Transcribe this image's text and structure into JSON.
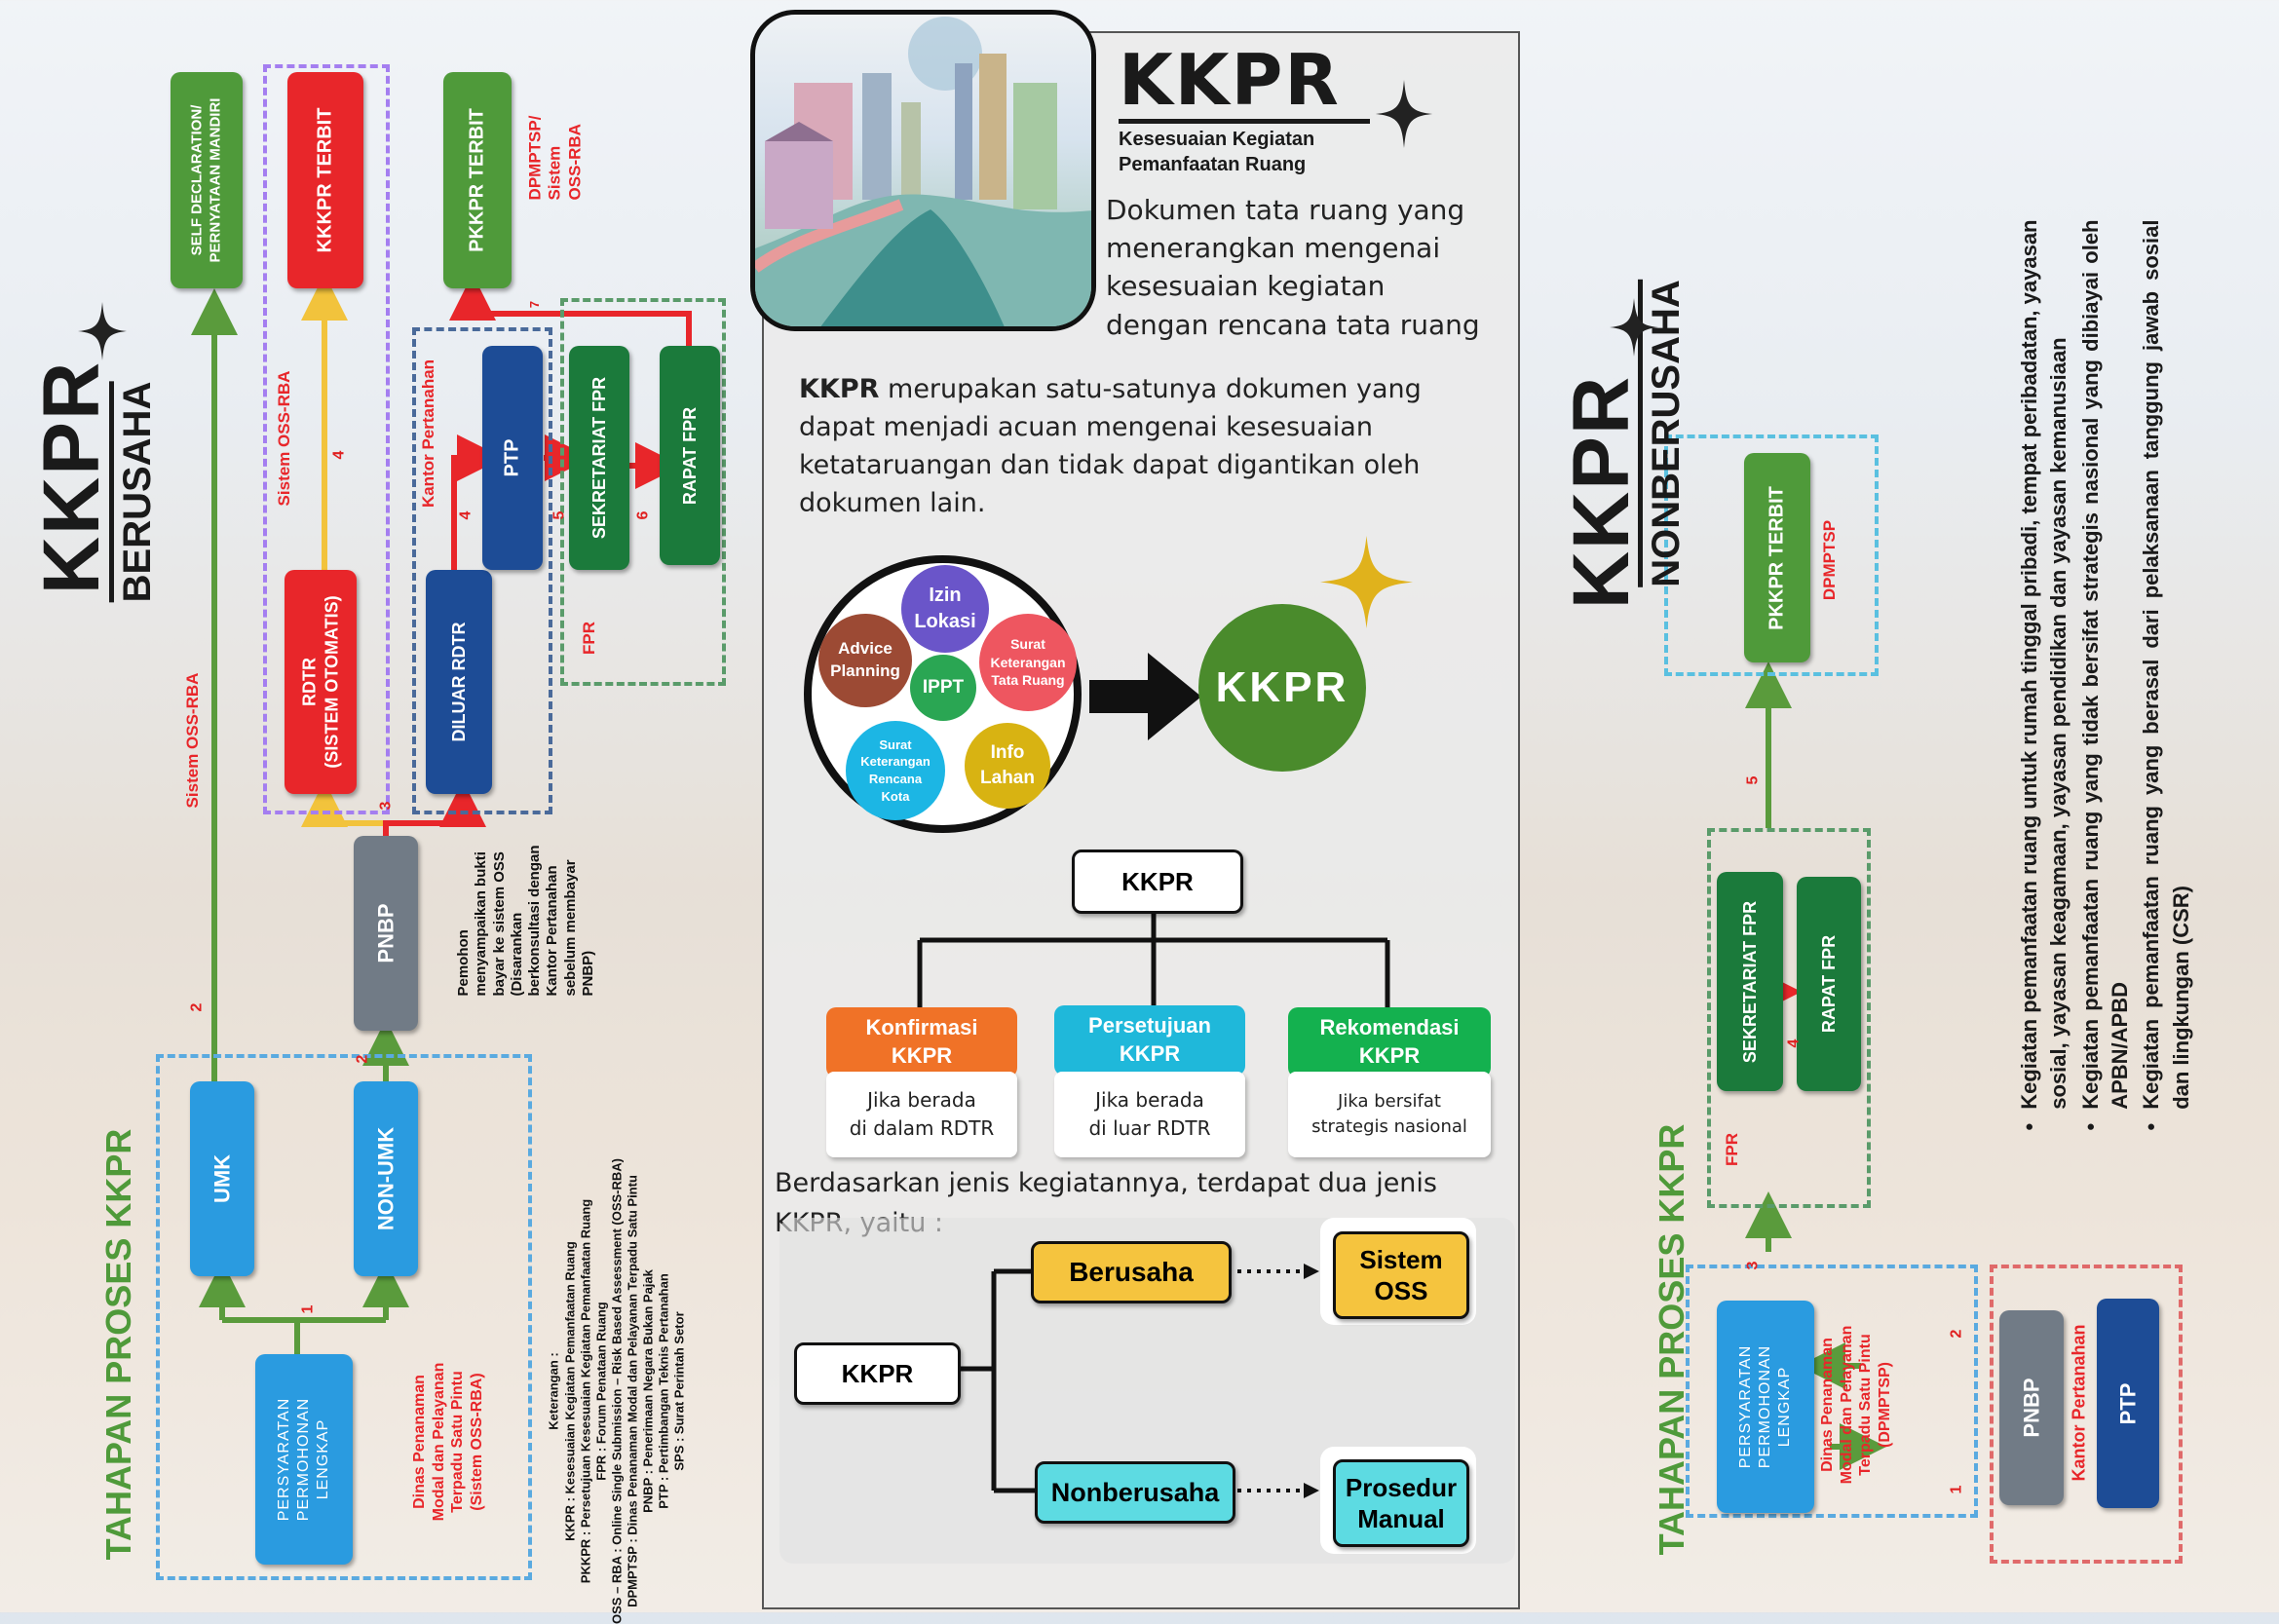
{
  "left": {
    "title": "KKPR",
    "subtitle": "BERUSAHA",
    "tahapan": "TAHAPAN PROSES KKPR",
    "boxes": {
      "self_declaration": "SELF DECLARATION/\nPERNYATAAN MANDIRI",
      "kkkpr_terbit": "KKKPR TERBIT",
      "pkkpr_terbit": "PKKPR TERBIT",
      "rdtr": "RDTR\n(SISTEM OTOMATIS)",
      "diluar_rdtr": "DILUAR RDTR",
      "ptp": "PTP",
      "sekretariat_fpr": "SEKRETARIAT FPR",
      "rapat_fpr": "RAPAT FPR",
      "pnbp": "PNBP",
      "umk": "UMK",
      "non_umk": "NON-UMK",
      "persyaratan": "PERSYARATAN\nPERMOHONAN\nLENGKAP"
    },
    "labels": {
      "sistem_oss_rba_left": "Sistem OSS-RBA",
      "sistem_oss_rba_mid": "Sistem OSS-RBA",
      "kantor_pertanahan": "Kantor Pertanahan",
      "dpmptsp_sistem": "DPMPTSP/\nSistem\nOSS-RBA",
      "fpr": "FPR",
      "pemohon_note": "Pemohon\nmenyampaikan bukti\nbayar ke sistem OSS\n(Disarankan\nberkonsultasi dengan\nKantor Pertanahan\nsebelum membayar\nPNBP)",
      "dinas": "Dinas Penanaman\nModal dan Pelayanan\nTerpadu Satu Pintu\n(Sistem OSS-RBA)"
    },
    "steps": [
      "1",
      "2",
      "2",
      "3",
      "4",
      "4",
      "5",
      "6",
      "7"
    ],
    "keterangan": [
      "Keterangan :",
      "KKPR : Kesesuaian Kegiatan Pemanfaatan Ruang",
      "PKKPR : Persetujuan Kesesuaian Kegiatan Pemanfaatan Ruang",
      "FPR : Forum Penataan Ruang",
      "OSS – RBA : Online Single Submission – Risk Based Assessment (OSS-RBA)",
      "DPMPTSP : Dinas Penanaman Modal dan Pelayanan Terpadu Satu Pintu",
      "PNBP : Penerimaan Negara Bukan Pajak",
      "PTP : Pertimbangan Teknis Pertanahan",
      "SPS : Surat Perintah Setor"
    ]
  },
  "center": {
    "title": "KKPR",
    "subtitle_line1": "Kesesuaian Kegiatan",
    "subtitle_line2": "Pemanfaatan Ruang",
    "definition": "Dokumen tata ruang yang\nmenerangkan mengenai\nkesesuaian kegiatan\ndengan rencana tata ruang",
    "paragraph_bold": "KKPR",
    "paragraph_rest": " merupakan satu-satunya dokumen  yang dapat menjadi acuan mengenai kesesuaian ketataruangan dan tidak dapat digantikan oleh dokumen lain.",
    "circles": {
      "izin_lokasi": "Izin\nLokasi",
      "advice_planning": "Advice\nPlanning",
      "surat_ktr": "Surat\nKeterangan\nTata Ruang",
      "ippt": "IPPT",
      "surat_krk": "Surat\nKeterangan\nRencana\nKota",
      "info_lahan": "Info\nLahan",
      "kkpr": "KKPR"
    },
    "tree_root": "KKPR",
    "categories": [
      {
        "title": "Konfirmasi\nKKPR",
        "desc": "Jika berada\ndi dalam RDTR",
        "color": "#f07227"
      },
      {
        "title": "Persetujuan\nKKPR",
        "desc": "Jika berada\ndi luar RDTR",
        "color": "#1fb8da"
      },
      {
        "title": "Rekomendasi\nKKPR",
        "desc": "Jika bersifat\nstrategis nasional",
        "color": "#14b14f"
      }
    ],
    "jenis_text": "Berdasarkan jenis kegiatannya, terdapat dua jenis KKPR, yaitu :",
    "jenis_root": "KKPR",
    "berusaha": "Berusaha",
    "nonberusaha": "Nonberusaha",
    "sistem_oss": "Sistem\nOSS",
    "prosedur_manual": "Prosedur\nManual"
  },
  "right": {
    "title": "KKPR",
    "subtitle": "NONBERUSAHA",
    "tahapan": "TAHAPAN PROSES KKPR",
    "pkkpr_terbit": "PKKPR TERBIT",
    "dpmptsp": "DPMPTSP",
    "sekretariat_fpr": "SEKRETARIAT FPR",
    "rapat_fpr": "RAPAT FPR",
    "fpr": "FPR",
    "persyaratan": "PERSYARATAN\nPERMOHONAN\nLENGKAP",
    "dinas": "Dinas Penanaman\nModal dan Pelayanan\nTerpadu Satu Pintu\n(DPMPTSP)",
    "pnbp": "PNBP",
    "ptp": "PTP",
    "kantor_pertanahan": "Kantor Pertanahan",
    "steps": [
      "1",
      "2",
      "3",
      "4",
      "5"
    ],
    "bullets": [
      "Kegiatan pemanfaatan ruang untuk rumah tinggal pribadi, tempat peribadatan, yayasan sosial, yayasan keagamaan, yayasan pendidikan dan yayasan kemanusiaan",
      "Kegiatan pemanfaatan ruang yang tidak bersifat strategis nasional yang dibiayai oleh APBN/APBD",
      "Kegiatan pemanfaatan ruang yang berasal dari pelaksanaan tanggung jawab sosial dan lingkungan (CSR)"
    ]
  }
}
